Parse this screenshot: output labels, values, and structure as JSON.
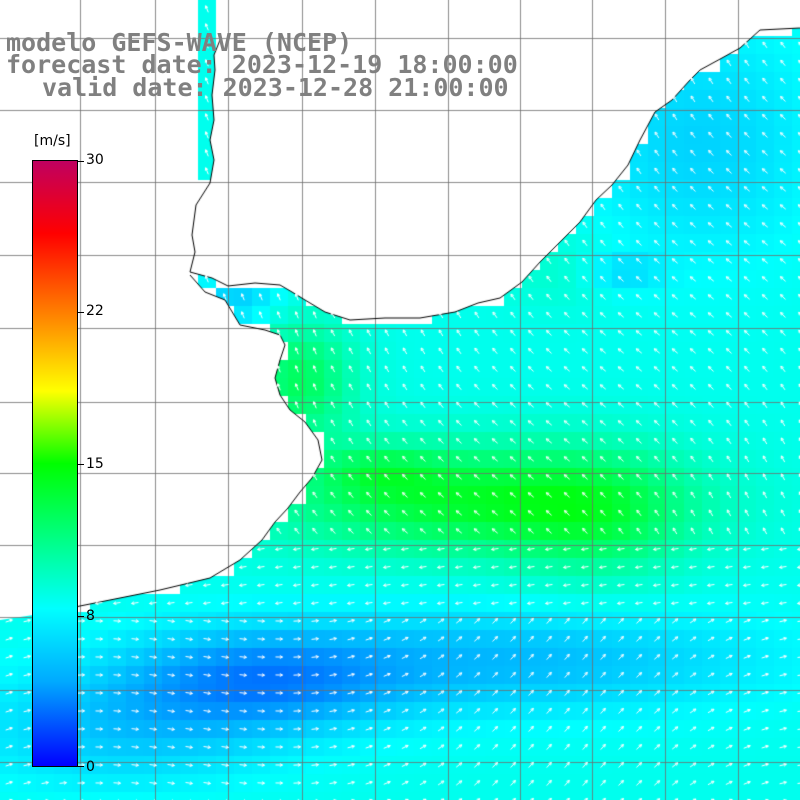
{
  "title": {
    "line1": "modelo GEFS-WAVE (NCEP)",
    "line2": "forecast date: 2023-12-19 18:00:00",
    "line3": "valid date: 2023-12-28 21:00:00"
  },
  "colorbar": {
    "unit": "[m/s]",
    "ticks": [
      {
        "label": "30",
        "value": 30
      },
      {
        "label": "22",
        "value": 22
      },
      {
        "label": "15",
        "value": 15
      },
      {
        "label": "8",
        "value": 8
      },
      {
        "label": "0",
        "value": 0
      }
    ],
    "min": 0,
    "max": 30
  },
  "colors": {
    "ocean_low": "#0000ff",
    "ocean_mid": "#00ffff",
    "ocean_high": "#00ff00",
    "peak": "#ffff00",
    "land": "#ffffff",
    "coast": "#000000",
    "grid": "#808080",
    "title_text": "#808080"
  },
  "map": {
    "variable": "wind speed",
    "overlay": "wind arrows",
    "gridlines": true
  }
}
